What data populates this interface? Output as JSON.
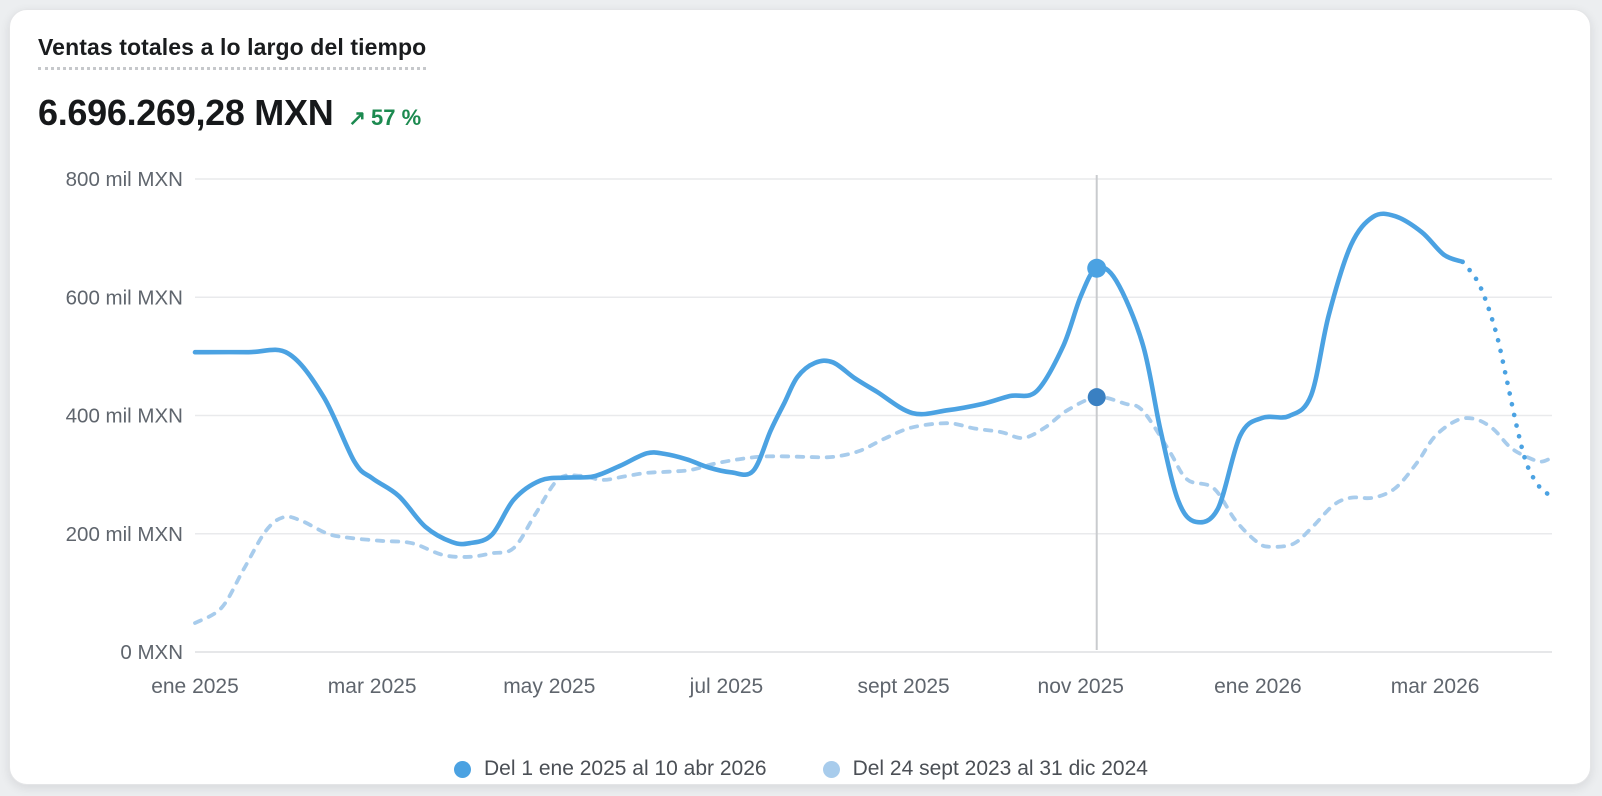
{
  "card": {
    "title": "Ventas totales a lo largo del tiempo",
    "total_value": "6.696.269,28 MXN",
    "delta": {
      "direction": "up",
      "arrow": "↗",
      "label": "57 %"
    }
  },
  "colors": {
    "current_series": "#4BA2E2",
    "comparison_series": "#A8CCEC",
    "comparison_marker": "#3A80C2",
    "positive_delta": "#1C8A50",
    "grid": "#e9eaec",
    "grid_bottom": "#dddfe2",
    "axis_text": "#5f656d",
    "hover_line": "#c9cbce"
  },
  "legend": {
    "items": [
      {
        "label": "Del 1 ene 2025 al 10 abr 2026",
        "color": "#4BA2E2"
      },
      {
        "label": "Del 24 sept 2023 al 31 dic 2024",
        "color": "#A8CCEC"
      }
    ]
  },
  "chart_data": {
    "type": "line",
    "title": "Ventas totales a lo largo del tiempo",
    "values_unit": "mil MXN (thousands of MXN)",
    "x_unit": "months since 1 ene 2025 (current range); comparison series is time-shifted from 24 sept 2023 - 31 dic 2024",
    "grid": "horizontal only",
    "legend_position": "bottom-center",
    "y_axis": {
      "min": 0,
      "max": 800,
      "ticks": [
        {
          "value": 0,
          "label": "0 MXN"
        },
        {
          "value": 200,
          "label": "200 mil MXN"
        },
        {
          "value": 400,
          "label": "400 mil MXN"
        },
        {
          "value": 600,
          "label": "600 mil MXN"
        },
        {
          "value": 800,
          "label": "800 mil MXN"
        }
      ]
    },
    "x_axis": {
      "min_month": 0,
      "max_month": 15.32,
      "ticks": [
        {
          "month": 0,
          "label": "ene 2025"
        },
        {
          "month": 2,
          "label": "mar 2025"
        },
        {
          "month": 4,
          "label": "may 2025"
        },
        {
          "month": 6,
          "label": "jul 2025"
        },
        {
          "month": 8,
          "label": "sept 2025"
        },
        {
          "month": 10,
          "label": "nov 2025"
        },
        {
          "month": 12,
          "label": "ene 2026"
        },
        {
          "month": 14,
          "label": "mar 2026"
        }
      ]
    },
    "hover_marker": {
      "month": 10.18,
      "current_value": 649,
      "comparison_value": 431
    },
    "series": [
      {
        "name": "Del 1 ene 2025 al 10 abr 2026",
        "style": "solid",
        "color": "#4BA2E2",
        "dotted_from_month": 14.31,
        "points": [
          [
            0,
            507
          ],
          [
            0.6,
            507
          ],
          [
            1.05,
            505
          ],
          [
            1.45,
            432
          ],
          [
            1.8,
            322
          ],
          [
            2.0,
            294
          ],
          [
            2.3,
            264
          ],
          [
            2.6,
            212
          ],
          [
            2.9,
            186
          ],
          [
            3.1,
            184
          ],
          [
            3.35,
            198
          ],
          [
            3.6,
            258
          ],
          [
            3.9,
            290
          ],
          [
            4.2,
            295
          ],
          [
            4.5,
            297
          ],
          [
            4.8,
            315
          ],
          [
            5.1,
            336
          ],
          [
            5.3,
            335
          ],
          [
            5.55,
            326
          ],
          [
            5.8,
            312
          ],
          [
            6.05,
            304
          ],
          [
            6.3,
            306
          ],
          [
            6.5,
            375
          ],
          [
            6.65,
            420
          ],
          [
            6.8,
            465
          ],
          [
            7.0,
            489
          ],
          [
            7.2,
            490
          ],
          [
            7.45,
            463
          ],
          [
            7.7,
            440
          ],
          [
            8.1,
            404
          ],
          [
            8.5,
            409
          ],
          [
            8.9,
            420
          ],
          [
            9.2,
            433
          ],
          [
            9.5,
            441
          ],
          [
            9.8,
            517
          ],
          [
            10.0,
            602
          ],
          [
            10.18,
            649
          ],
          [
            10.4,
            628
          ],
          [
            10.7,
            520
          ],
          [
            10.9,
            375
          ],
          [
            11.1,
            256
          ],
          [
            11.3,
            220
          ],
          [
            11.55,
            243
          ],
          [
            11.8,
            366
          ],
          [
            12.05,
            396
          ],
          [
            12.35,
            399
          ],
          [
            12.6,
            434
          ],
          [
            12.8,
            570
          ],
          [
            13.05,
            688
          ],
          [
            13.3,
            736
          ],
          [
            13.55,
            737
          ],
          [
            13.85,
            710
          ],
          [
            14.1,
            672
          ],
          [
            14.31,
            660
          ],
          [
            14.5,
            621
          ],
          [
            14.68,
            545
          ],
          [
            14.81,
            460
          ],
          [
            14.93,
            376
          ],
          [
            15.04,
            316
          ],
          [
            15.19,
            277
          ],
          [
            15.32,
            264
          ]
        ]
      },
      {
        "name": "Del 24 sept 2023 al 31 dic 2024",
        "style": "dashed",
        "color": "#A8CCEC",
        "marker_color": "#3A80C2",
        "points": [
          [
            0,
            49
          ],
          [
            0.3,
            75
          ],
          [
            0.55,
            140
          ],
          [
            0.8,
            205
          ],
          [
            1.0,
            228
          ],
          [
            1.2,
            222
          ],
          [
            1.5,
            200
          ],
          [
            1.75,
            193
          ],
          [
            2.1,
            188
          ],
          [
            2.45,
            184
          ],
          [
            2.8,
            164
          ],
          [
            3.1,
            161
          ],
          [
            3.35,
            167
          ],
          [
            3.6,
            176
          ],
          [
            3.85,
            235
          ],
          [
            4.1,
            292
          ],
          [
            4.35,
            298
          ],
          [
            4.6,
            291
          ],
          [
            4.85,
            297
          ],
          [
            5.1,
            303
          ],
          [
            5.35,
            305
          ],
          [
            5.6,
            308
          ],
          [
            5.85,
            318
          ],
          [
            6.1,
            325
          ],
          [
            6.35,
            330
          ],
          [
            6.6,
            331
          ],
          [
            6.9,
            330
          ],
          [
            7.2,
            330
          ],
          [
            7.5,
            340
          ],
          [
            7.8,
            362
          ],
          [
            8.1,
            380
          ],
          [
            8.5,
            387
          ],
          [
            8.8,
            378
          ],
          [
            9.1,
            372
          ],
          [
            9.35,
            362
          ],
          [
            9.6,
            380
          ],
          [
            9.85,
            409
          ],
          [
            10.18,
            431
          ],
          [
            10.5,
            420
          ],
          [
            10.7,
            408
          ],
          [
            11.0,
            340
          ],
          [
            11.2,
            292
          ],
          [
            11.5,
            277
          ],
          [
            11.75,
            222
          ],
          [
            12.0,
            185
          ],
          [
            12.15,
            178
          ],
          [
            12.4,
            183
          ],
          [
            12.6,
            209
          ],
          [
            12.85,
            248
          ],
          [
            13.05,
            261
          ],
          [
            13.3,
            261
          ],
          [
            13.55,
            277
          ],
          [
            13.8,
            321
          ],
          [
            14.0,
            365
          ],
          [
            14.25,
            392
          ],
          [
            14.45,
            394
          ],
          [
            14.65,
            378
          ],
          [
            14.85,
            346
          ],
          [
            15.05,
            329
          ],
          [
            15.2,
            322
          ],
          [
            15.32,
            329
          ]
        ]
      }
    ]
  }
}
